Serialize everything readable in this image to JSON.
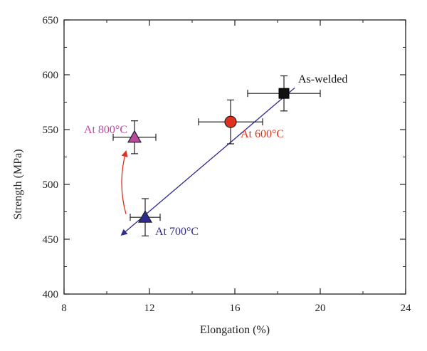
{
  "chart_data": {
    "type": "scatter",
    "xlabel": "Elongation (%)",
    "ylabel": "Strength (MPa)",
    "xlim": [
      8,
      24
    ],
    "ylim": [
      400,
      650
    ],
    "x_ticks": [
      "8",
      "12",
      "16",
      "20",
      "24"
    ],
    "y_ticks": [
      "400",
      "450",
      "500",
      "550",
      "600",
      "650"
    ],
    "points": [
      {
        "label": "As-welded",
        "x": 18.3,
        "y": 583,
        "x_err": 1.7,
        "y_err": 16,
        "marker": "square",
        "color": "#111111",
        "label_color": "#111111"
      },
      {
        "label": "At 600°C",
        "x": 15.8,
        "y": 557,
        "x_err": 1.5,
        "y_err": 20,
        "marker": "circle",
        "color": "#e0301e",
        "label_color": "#d8341c"
      },
      {
        "label": "At 700°C",
        "x": 11.8,
        "y": 470,
        "x_err": 0.7,
        "y_err": 17,
        "marker": "triangle",
        "color": "#2f2a8f",
        "label_color": "#2f2a8f"
      },
      {
        "label": "At 800°C",
        "x": 11.3,
        "y": 543,
        "x_err": 1.0,
        "y_err": 15,
        "marker": "triangle",
        "color": "#b84aa0",
        "label_color": "#b84aa0"
      }
    ],
    "arrows": [
      {
        "from": [
          18.8,
          588
        ],
        "to": [
          10.7,
          454
        ],
        "color": "#2f2a8f",
        "style": "straight"
      },
      {
        "from": [
          10.9,
          473
        ],
        "to": [
          10.9,
          530
        ],
        "color": "#e0301e",
        "style": "curved"
      }
    ]
  }
}
